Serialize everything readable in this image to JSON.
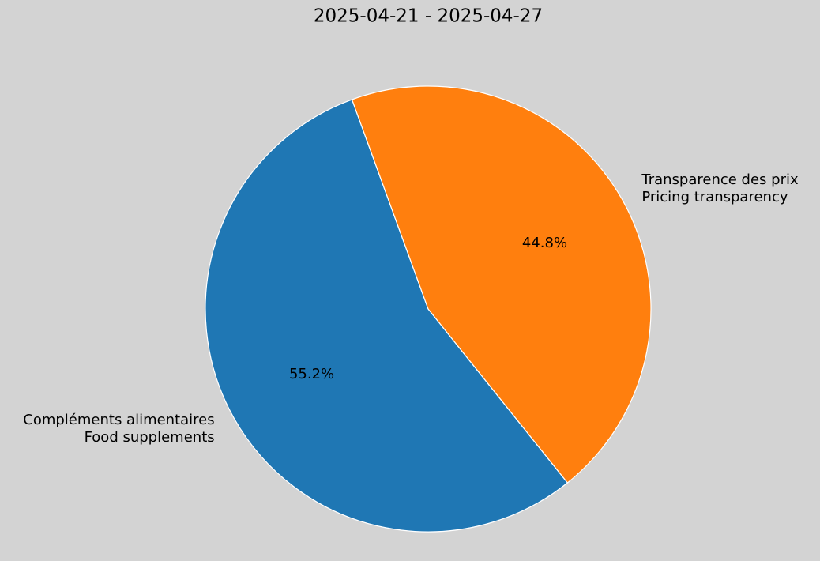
{
  "chart_data": {
    "type": "pie",
    "title": "2025-04-21 - 2025-04-27",
    "categories": [
      "Compléments alimentaires\nFood supplements",
      "Transparence des prix\nPricing transparency"
    ],
    "values": [
      55.2,
      44.8
    ],
    "value_labels": [
      "55.2%",
      "44.8%"
    ],
    "colors": [
      "#1f77b4",
      "#ff7f0e"
    ],
    "start_angle": 110,
    "counterclock": true
  }
}
